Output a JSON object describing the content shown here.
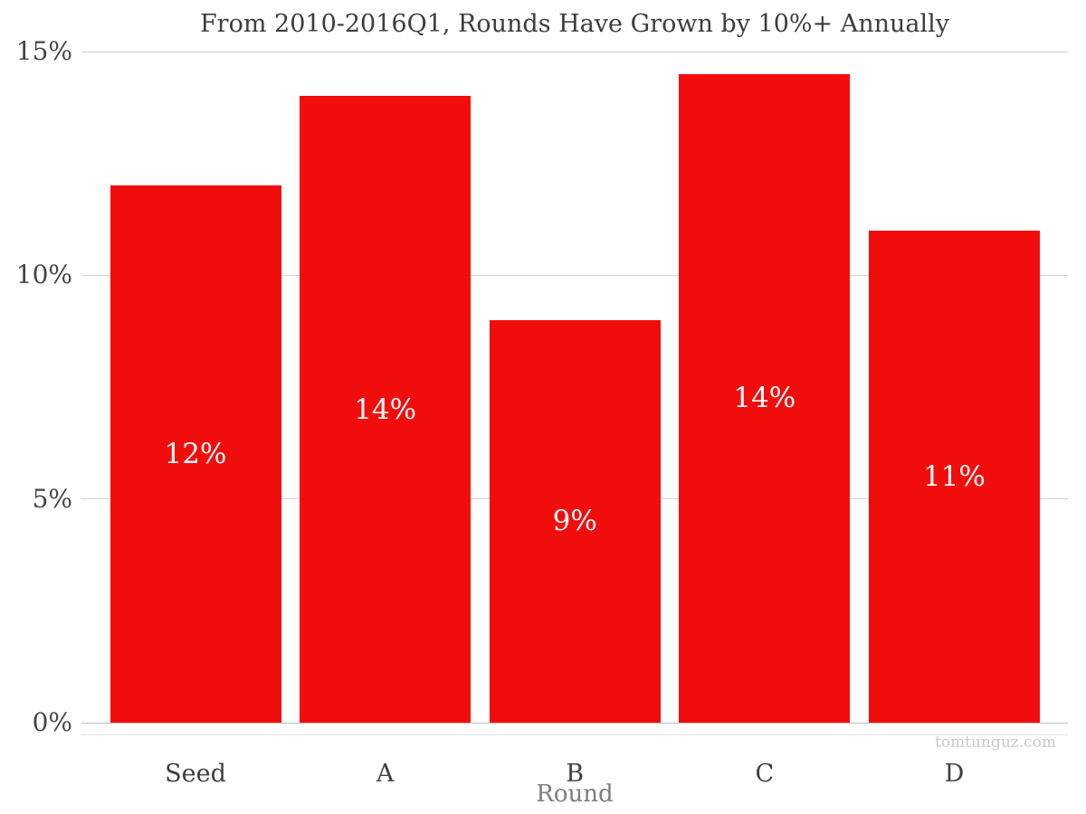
{
  "chart_data": {
    "type": "bar",
    "title": "From 2010-2016Q1, Rounds Have Grown by 10%+ Annually",
    "xlabel": "Round",
    "ylabel": "",
    "categories": [
      "Seed",
      "A",
      "B",
      "C",
      "D"
    ],
    "values": [
      12,
      14,
      9,
      14.5,
      11
    ],
    "bar_labels": [
      "12%",
      "14%",
      "9%",
      "14%",
      "11%"
    ],
    "y_ticks": [
      {
        "value": 0,
        "label": "0%"
      },
      {
        "value": 5,
        "label": "5%"
      },
      {
        "value": 10,
        "label": "10%"
      },
      {
        "value": 15,
        "label": "15%"
      }
    ],
    "ylim": [
      0,
      15
    ],
    "grid": true,
    "legend": false,
    "colors": {
      "bar": "#f20d0d",
      "bar_label": "#ffffff",
      "title_text": "#3d3d3d",
      "tick_text": "#454545",
      "category_text": "#3f3f3f",
      "xlabel_text": "#7d7d7d",
      "gridline": "#d2d2d2",
      "zero_line": "#bdbdbd",
      "axis_line": "#e4e4e4",
      "watermark_text": "#c9c9c9",
      "background": "#ffffff"
    }
  },
  "watermark": "tomtunguz.com"
}
